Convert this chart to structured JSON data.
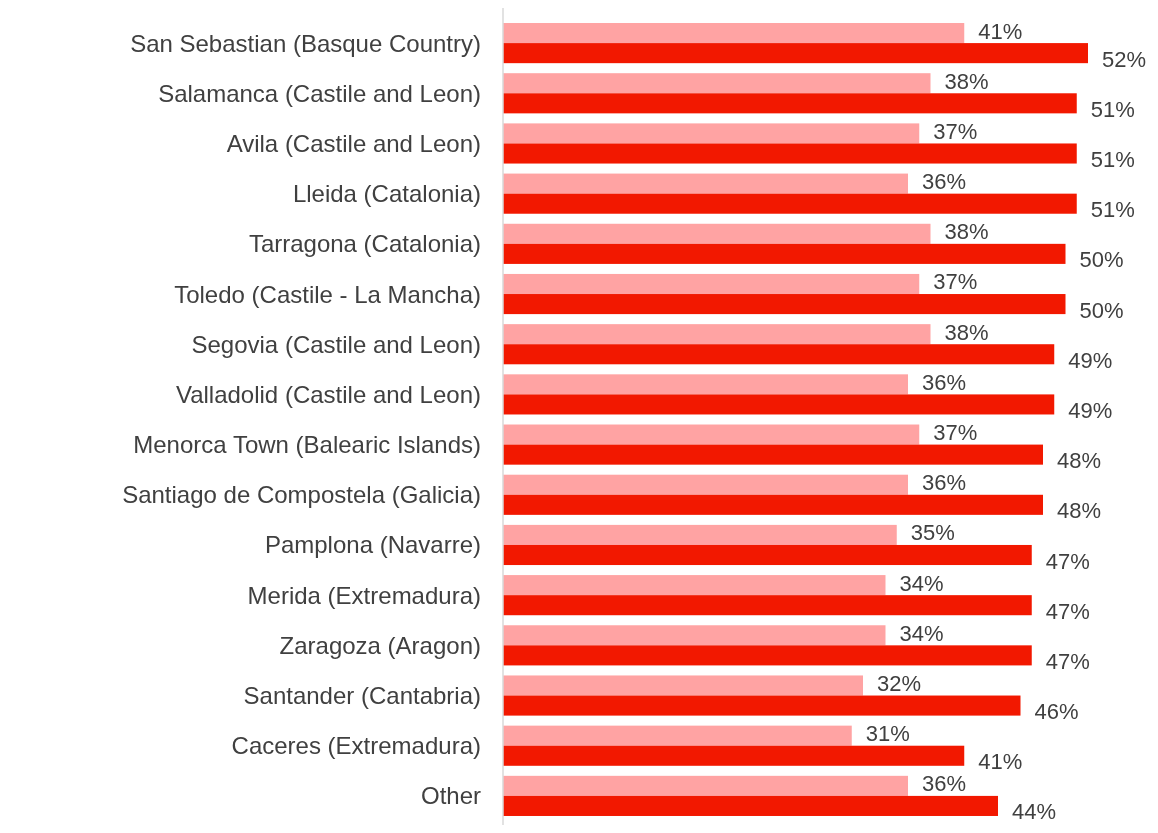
{
  "chart_data": {
    "type": "bar",
    "orientation": "horizontal",
    "categories": [
      "San Sebastian (Basque Country)",
      "Salamanca (Castile and Leon)",
      "Avila (Castile and Leon)",
      "Lleida (Catalonia)",
      "Tarragona (Catalonia)",
      "Toledo (Castile - La Mancha)",
      "Segovia (Castile and Leon)",
      "Valladolid (Castile and Leon)",
      "Menorca Town (Balearic Islands)",
      "Santiago de Compostela (Galicia)",
      "Pamplona (Navarre)",
      "Merida (Extremadura)",
      "Zaragoza (Aragon)",
      "Santander (Cantabria)",
      "Caceres (Extremadura)",
      "Other"
    ],
    "series": [
      {
        "color": "#ffa3a3",
        "values": [
          41,
          38,
          37,
          36,
          38,
          37,
          38,
          36,
          37,
          36,
          35,
          34,
          34,
          32,
          31,
          36
        ],
        "value_labels": [
          "41%",
          "38%",
          "37%",
          "36%",
          "38%",
          "37%",
          "38%",
          "36%",
          "37%",
          "36%",
          "35%",
          "34%",
          "34%",
          "32%",
          "31%",
          "36%"
        ]
      },
      {
        "color": "#f21800",
        "values": [
          52,
          51,
          51,
          51,
          50,
          50,
          49,
          49,
          48,
          48,
          47,
          47,
          47,
          46,
          41,
          44
        ],
        "value_labels": [
          "52%",
          "51%",
          "51%",
          "51%",
          "50%",
          "50%",
          "49%",
          "49%",
          "48%",
          "48%",
          "47%",
          "47%",
          "47%",
          "46%",
          "41%",
          "44%"
        ]
      }
    ]
  }
}
